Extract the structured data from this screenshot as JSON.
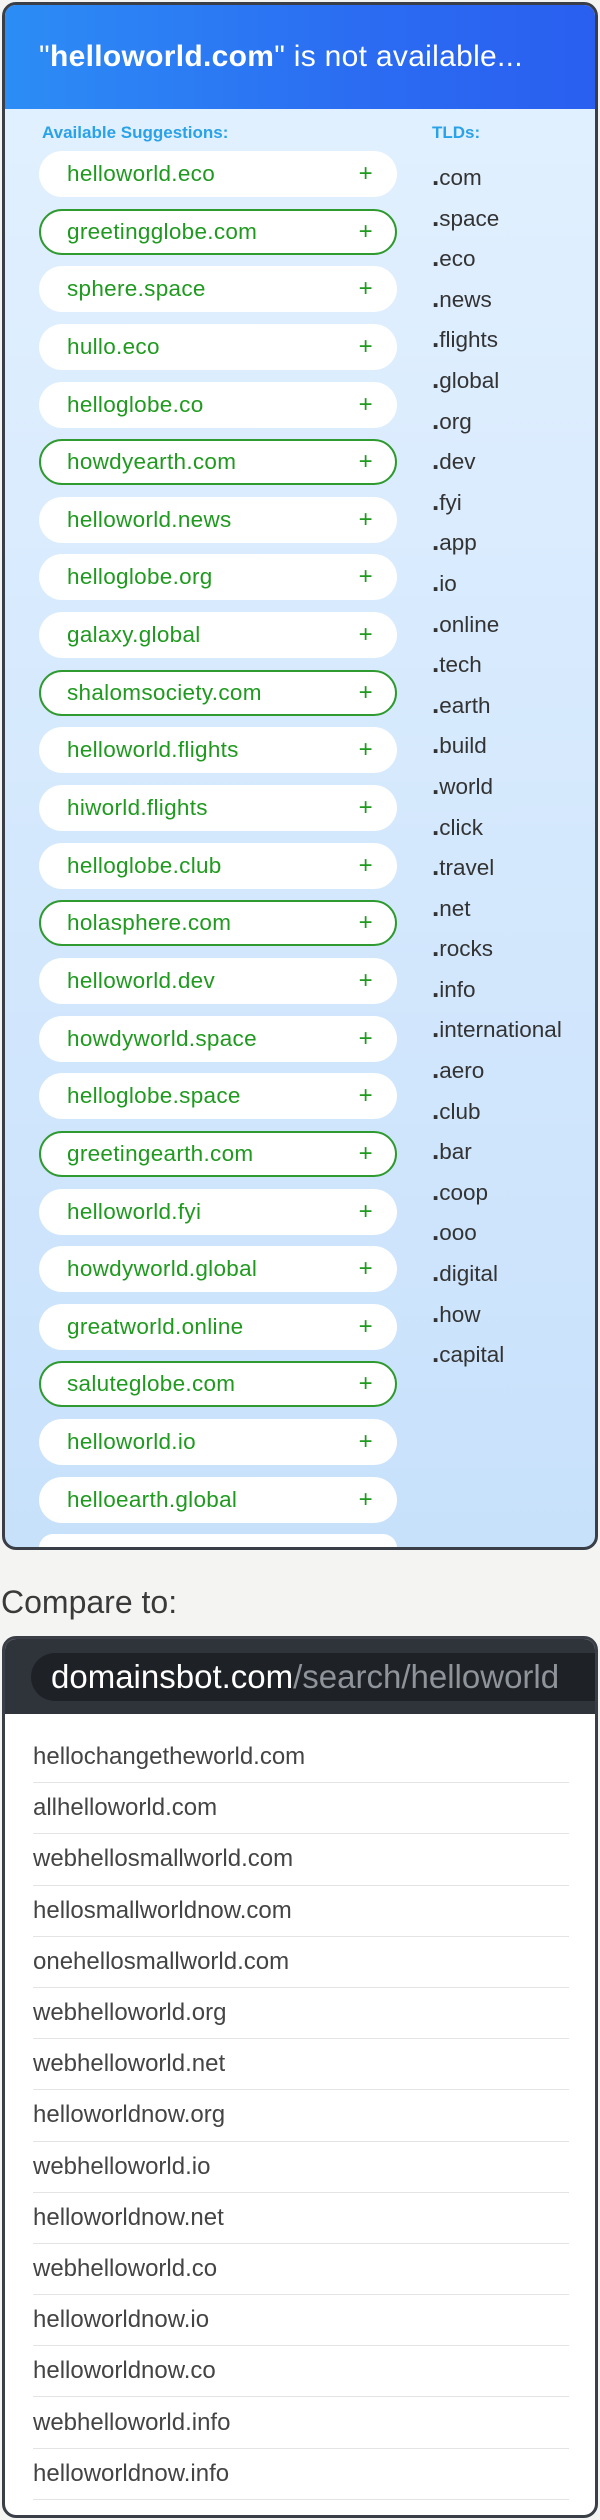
{
  "header": {
    "quote_open": "\"",
    "domain": "helloworld.com",
    "rest": "\" is not available..."
  },
  "suggestions_title": "Available Suggestions:",
  "tlds_title": "TLDs:",
  "suggestions": [
    {
      "name": "helloworld.eco",
      "highlighted": false
    },
    {
      "name": "greetingglobe.com",
      "highlighted": true
    },
    {
      "name": "sphere.space",
      "highlighted": false
    },
    {
      "name": "hullo.eco",
      "highlighted": false
    },
    {
      "name": "helloglobe.co",
      "highlighted": false
    },
    {
      "name": "howdyearth.com",
      "highlighted": true
    },
    {
      "name": "helloworld.news",
      "highlighted": false
    },
    {
      "name": "helloglobe.org",
      "highlighted": false
    },
    {
      "name": "galaxy.global",
      "highlighted": false
    },
    {
      "name": "shalomsociety.com",
      "highlighted": true
    },
    {
      "name": "helloworld.flights",
      "highlighted": false
    },
    {
      "name": "hiworld.flights",
      "highlighted": false
    },
    {
      "name": "helloglobe.club",
      "highlighted": false
    },
    {
      "name": "holasphere.com",
      "highlighted": true
    },
    {
      "name": "helloworld.dev",
      "highlighted": false
    },
    {
      "name": "howdyworld.space",
      "highlighted": false
    },
    {
      "name": "helloglobe.space",
      "highlighted": false
    },
    {
      "name": "greetingearth.com",
      "highlighted": true
    },
    {
      "name": "helloworld.fyi",
      "highlighted": false
    },
    {
      "name": "howdyworld.global",
      "highlighted": false
    },
    {
      "name": "greatworld.online",
      "highlighted": false
    },
    {
      "name": "saluteglobe.com",
      "highlighted": true
    },
    {
      "name": "helloworld.io",
      "highlighted": false
    },
    {
      "name": "helloearth.global",
      "highlighted": false
    }
  ],
  "plus_label": "+",
  "tlds": [
    ".com",
    ".space",
    ".eco",
    ".news",
    ".flights",
    ".global",
    ".org",
    ".dev",
    ".fyi",
    ".app",
    ".io",
    ".online",
    ".tech",
    ".earth",
    ".build",
    ".world",
    ".click",
    ".travel",
    ".net",
    ".rocks",
    ".info",
    ".international",
    ".aero",
    ".club",
    ".bar",
    ".coop",
    ".ooo",
    ".digital",
    ".how",
    ".capital"
  ],
  "compare_label": "Compare to:",
  "url": {
    "host": "domainsbot.com",
    "path": "/search/helloworld"
  },
  "results": [
    "hellochangetheworld.com",
    "allhelloworld.com",
    "webhellosmallworld.com",
    "hellosmallworldnow.com",
    "onehellosmallworld.com",
    "webhelloworld.org",
    "webhelloworld.net",
    "helloworldnow.org",
    "webhelloworld.io",
    "helloworldnow.net",
    "webhelloworld.co",
    "helloworldnow.io",
    "helloworldnow.co",
    "webhelloworld.info",
    "helloworldnow.info"
  ],
  "colors": {
    "header_gradient_start": "#2c8df5",
    "header_gradient_end": "#2a5ff0",
    "suggestion_text": "#1f9a1f",
    "column_title": "#2aa2e8",
    "url_bar_bg": "#1e2126"
  }
}
